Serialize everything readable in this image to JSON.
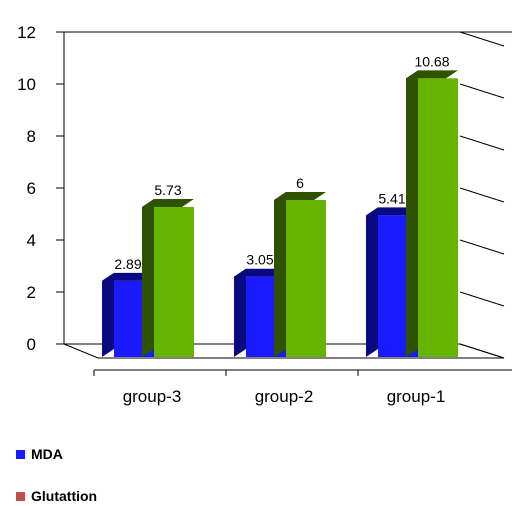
{
  "chart_data": {
    "type": "bar",
    "style": "3d-clustered-column",
    "categories": [
      "group-3",
      "group-2",
      "group-1"
    ],
    "series": [
      {
        "name": "MDA",
        "values": [
          2.89,
          3.05,
          5.41
        ],
        "color": "#1a1aff",
        "dark": "#0a0a80"
      },
      {
        "name": "Glutattion",
        "values": [
          5.73,
          6,
          10.68
        ],
        "color": "#66b300",
        "dark": "#2e5200",
        "legend_color": "#c0504d"
      }
    ],
    "data_labels": [
      [
        "2.89",
        "3.05",
        "5.41"
      ],
      [
        "5.73",
        "6",
        "10.68"
      ]
    ],
    "ylim": [
      0,
      12
    ],
    "yticks": [
      0,
      2,
      4,
      6,
      8,
      10,
      12
    ],
    "grid": false,
    "legend_position": "bottom-left"
  }
}
